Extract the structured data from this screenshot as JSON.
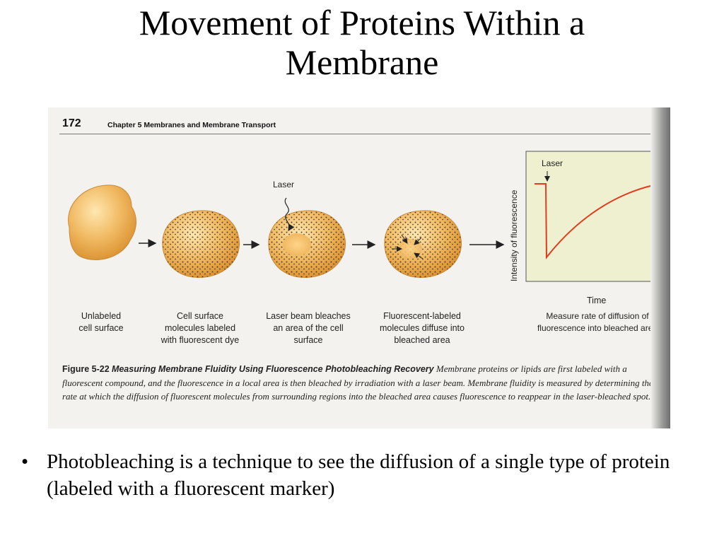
{
  "title": {
    "line1": "Movement of Proteins Within a",
    "line2": "Membrane"
  },
  "figure": {
    "page_number": "172",
    "chapter": "Chapter 5  Membranes and Membrane Transport",
    "laser_label": "Laser",
    "steps": [
      {
        "caption": "Unlabeled\ncell surface"
      },
      {
        "caption": "Cell surface\nmolecules labeled\nwith fluorescent dye"
      },
      {
        "caption": "Laser beam bleaches\nan area of the cell\nsurface"
      },
      {
        "caption": "Fluorescent-labeled\nmolecules diffuse into\nbleached area"
      },
      {
        "caption": "Measure rate of diffusion of\nfluorescence into bleached area"
      }
    ],
    "graph": {
      "laser_label": "Laser",
      "ylabel": "Intensity of fluorescence",
      "xlabel": "Time"
    },
    "caption": {
      "figure_label": "Figure 5-22",
      "figure_title": "Measuring Membrane Fluidity Using Fluorescence Photobleaching Recovery",
      "body": "Membrane proteins or lipids are first labeled with a fluorescent compound, and the fluorescence in a local area is then bleached by irradiation with a laser beam. Membrane fluidity is measured by determining the rate at which the diffusion of fluorescent molecules from surrounding regions into the bleached area causes fluorescence to reappear in the laser-bleached spot."
    },
    "colors": {
      "cell": "#f0b860",
      "cell_dark": "#d98f2e",
      "graph_bg": "#eef0cf",
      "curve": "#e23b1f"
    }
  },
  "bullets": [
    "Photobleaching is a technique to see the diffusion of a single type of protein (labeled with a fluorescent marker)"
  ]
}
